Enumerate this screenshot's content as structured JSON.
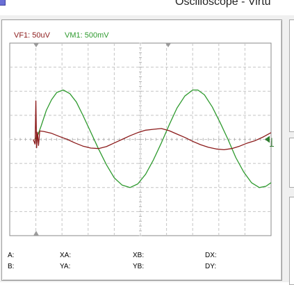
{
  "window": {
    "title": "Oscilloscope - Virtu"
  },
  "channels": {
    "vf1_label": "VF1: 50uV",
    "vm1_label": "VM1: 500mV",
    "vf1_color": "#8b1a1a",
    "vm1_color": "#2e9a2e"
  },
  "readouts": {
    "a": "A:",
    "b": "B:",
    "xa": "XA:",
    "ya": "YA:",
    "xb": "XB:",
    "yb": "YB:",
    "dx": "DX:",
    "dy": "DY:"
  },
  "screen": {
    "grid_divisions_x": 10,
    "grid_divisions_y": 8,
    "grid_style": "dashed",
    "cursor_marker_color": "#9a9a9a",
    "trigger_marker_color": "#2e7d2e"
  },
  "chart_data": {
    "type": "line",
    "title": "",
    "xlabel": "",
    "ylabel": "",
    "x_units": "divisions",
    "y_units": "divisions",
    "xlim": [
      0,
      10
    ],
    "ylim": [
      -4,
      4
    ],
    "series": [
      {
        "name": "VM1: 500mV",
        "color": "#2e9a2e",
        "points": [
          [
            0.95,
            0.0
          ],
          [
            1.05,
            0.1
          ],
          [
            1.2,
            0.55
          ],
          [
            1.4,
            1.2
          ],
          [
            1.6,
            1.65
          ],
          [
            1.8,
            1.95
          ],
          [
            2.05,
            2.05
          ],
          [
            2.3,
            1.9
          ],
          [
            2.55,
            1.55
          ],
          [
            2.8,
            1.0
          ],
          [
            3.1,
            0.3
          ],
          [
            3.4,
            -0.4
          ],
          [
            3.7,
            -1.05
          ],
          [
            4.0,
            -1.6
          ],
          [
            4.3,
            -1.9
          ],
          [
            4.6,
            -2.0
          ],
          [
            4.9,
            -1.85
          ],
          [
            5.2,
            -1.45
          ],
          [
            5.5,
            -0.85
          ],
          [
            5.8,
            -0.15
          ],
          [
            6.1,
            0.6
          ],
          [
            6.4,
            1.3
          ],
          [
            6.7,
            1.8
          ],
          [
            7.0,
            2.05
          ],
          [
            7.2,
            2.05
          ],
          [
            7.45,
            1.85
          ],
          [
            7.75,
            1.35
          ],
          [
            8.05,
            0.7
          ],
          [
            8.35,
            0.0
          ],
          [
            8.65,
            -0.75
          ],
          [
            8.95,
            -1.35
          ],
          [
            9.25,
            -1.8
          ],
          [
            9.55,
            -2.0
          ],
          [
            9.8,
            -1.95
          ],
          [
            10.0,
            -1.8
          ]
        ]
      },
      {
        "name": "VF1: 50uV",
        "color": "#8b1a1a",
        "points": [
          [
            0.9,
            0.0
          ],
          [
            0.97,
            -0.2
          ],
          [
            1.0,
            1.6
          ],
          [
            1.03,
            -0.35
          ],
          [
            1.06,
            0.3
          ],
          [
            1.1,
            -0.25
          ],
          [
            1.15,
            0.35
          ],
          [
            1.3,
            0.33
          ],
          [
            1.6,
            0.25
          ],
          [
            1.9,
            0.12
          ],
          [
            2.2,
            0.0
          ],
          [
            2.5,
            -0.15
          ],
          [
            2.8,
            -0.28
          ],
          [
            3.1,
            -0.36
          ],
          [
            3.4,
            -0.38
          ],
          [
            3.7,
            -0.3
          ],
          [
            4.0,
            -0.15
          ],
          [
            4.3,
            0.0
          ],
          [
            4.6,
            0.15
          ],
          [
            4.9,
            0.28
          ],
          [
            5.2,
            0.38
          ],
          [
            5.5,
            0.42
          ],
          [
            5.8,
            0.45
          ],
          [
            6.1,
            0.36
          ],
          [
            6.4,
            0.22
          ],
          [
            6.7,
            0.08
          ],
          [
            7.0,
            -0.08
          ],
          [
            7.3,
            -0.22
          ],
          [
            7.6,
            -0.33
          ],
          [
            7.9,
            -0.4
          ],
          [
            8.2,
            -0.43
          ],
          [
            8.5,
            -0.38
          ],
          [
            8.8,
            -0.28
          ],
          [
            9.1,
            -0.15
          ],
          [
            9.4,
            -0.05
          ],
          [
            9.7,
            0.1
          ],
          [
            10.0,
            0.28
          ]
        ]
      }
    ]
  }
}
